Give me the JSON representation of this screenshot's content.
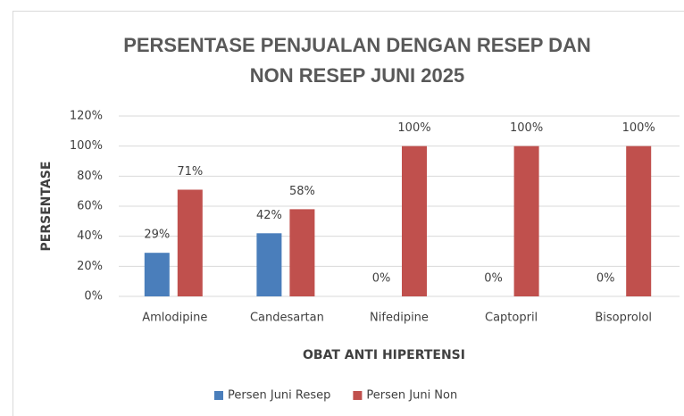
{
  "chart_data": {
    "type": "bar",
    "title": [
      "PERSENTASE PENJUALAN DENGAN RESEP DAN",
      "NON RESEP JUNI 2025"
    ],
    "x_label": "OBAT ANTI HIPERTENSI",
    "y_label": "PERSENTASE",
    "categories": [
      "Amlodipine",
      "Candesartan",
      "Nifedipine",
      "Captopril",
      "Bisoprolol"
    ],
    "series": [
      {
        "name": "Persen Juni Resep",
        "color": "#4a7ebb",
        "values": [
          29,
          42,
          0,
          0,
          0
        ],
        "value_labels": [
          "29%",
          "42%",
          "0%",
          "0%",
          "0%"
        ]
      },
      {
        "name": "Persen Juni Non",
        "color": "#c0504d",
        "values": [
          71,
          58,
          100,
          100,
          100
        ],
        "value_labels": [
          "71%",
          "58%",
          "100%",
          "100%",
          "100%"
        ]
      }
    ],
    "ylim": [
      0,
      120
    ],
    "yticks": [
      {
        "value": 0,
        "label": "0%"
      },
      {
        "value": 20,
        "label": "20%"
      },
      {
        "value": 40,
        "label": "40%"
      },
      {
        "value": 60,
        "label": "60%"
      },
      {
        "value": 80,
        "label": "80%"
      },
      {
        "value": 100,
        "label": "100%"
      },
      {
        "value": 120,
        "label": "120%"
      }
    ],
    "grid": true,
    "legend": "bottom"
  }
}
